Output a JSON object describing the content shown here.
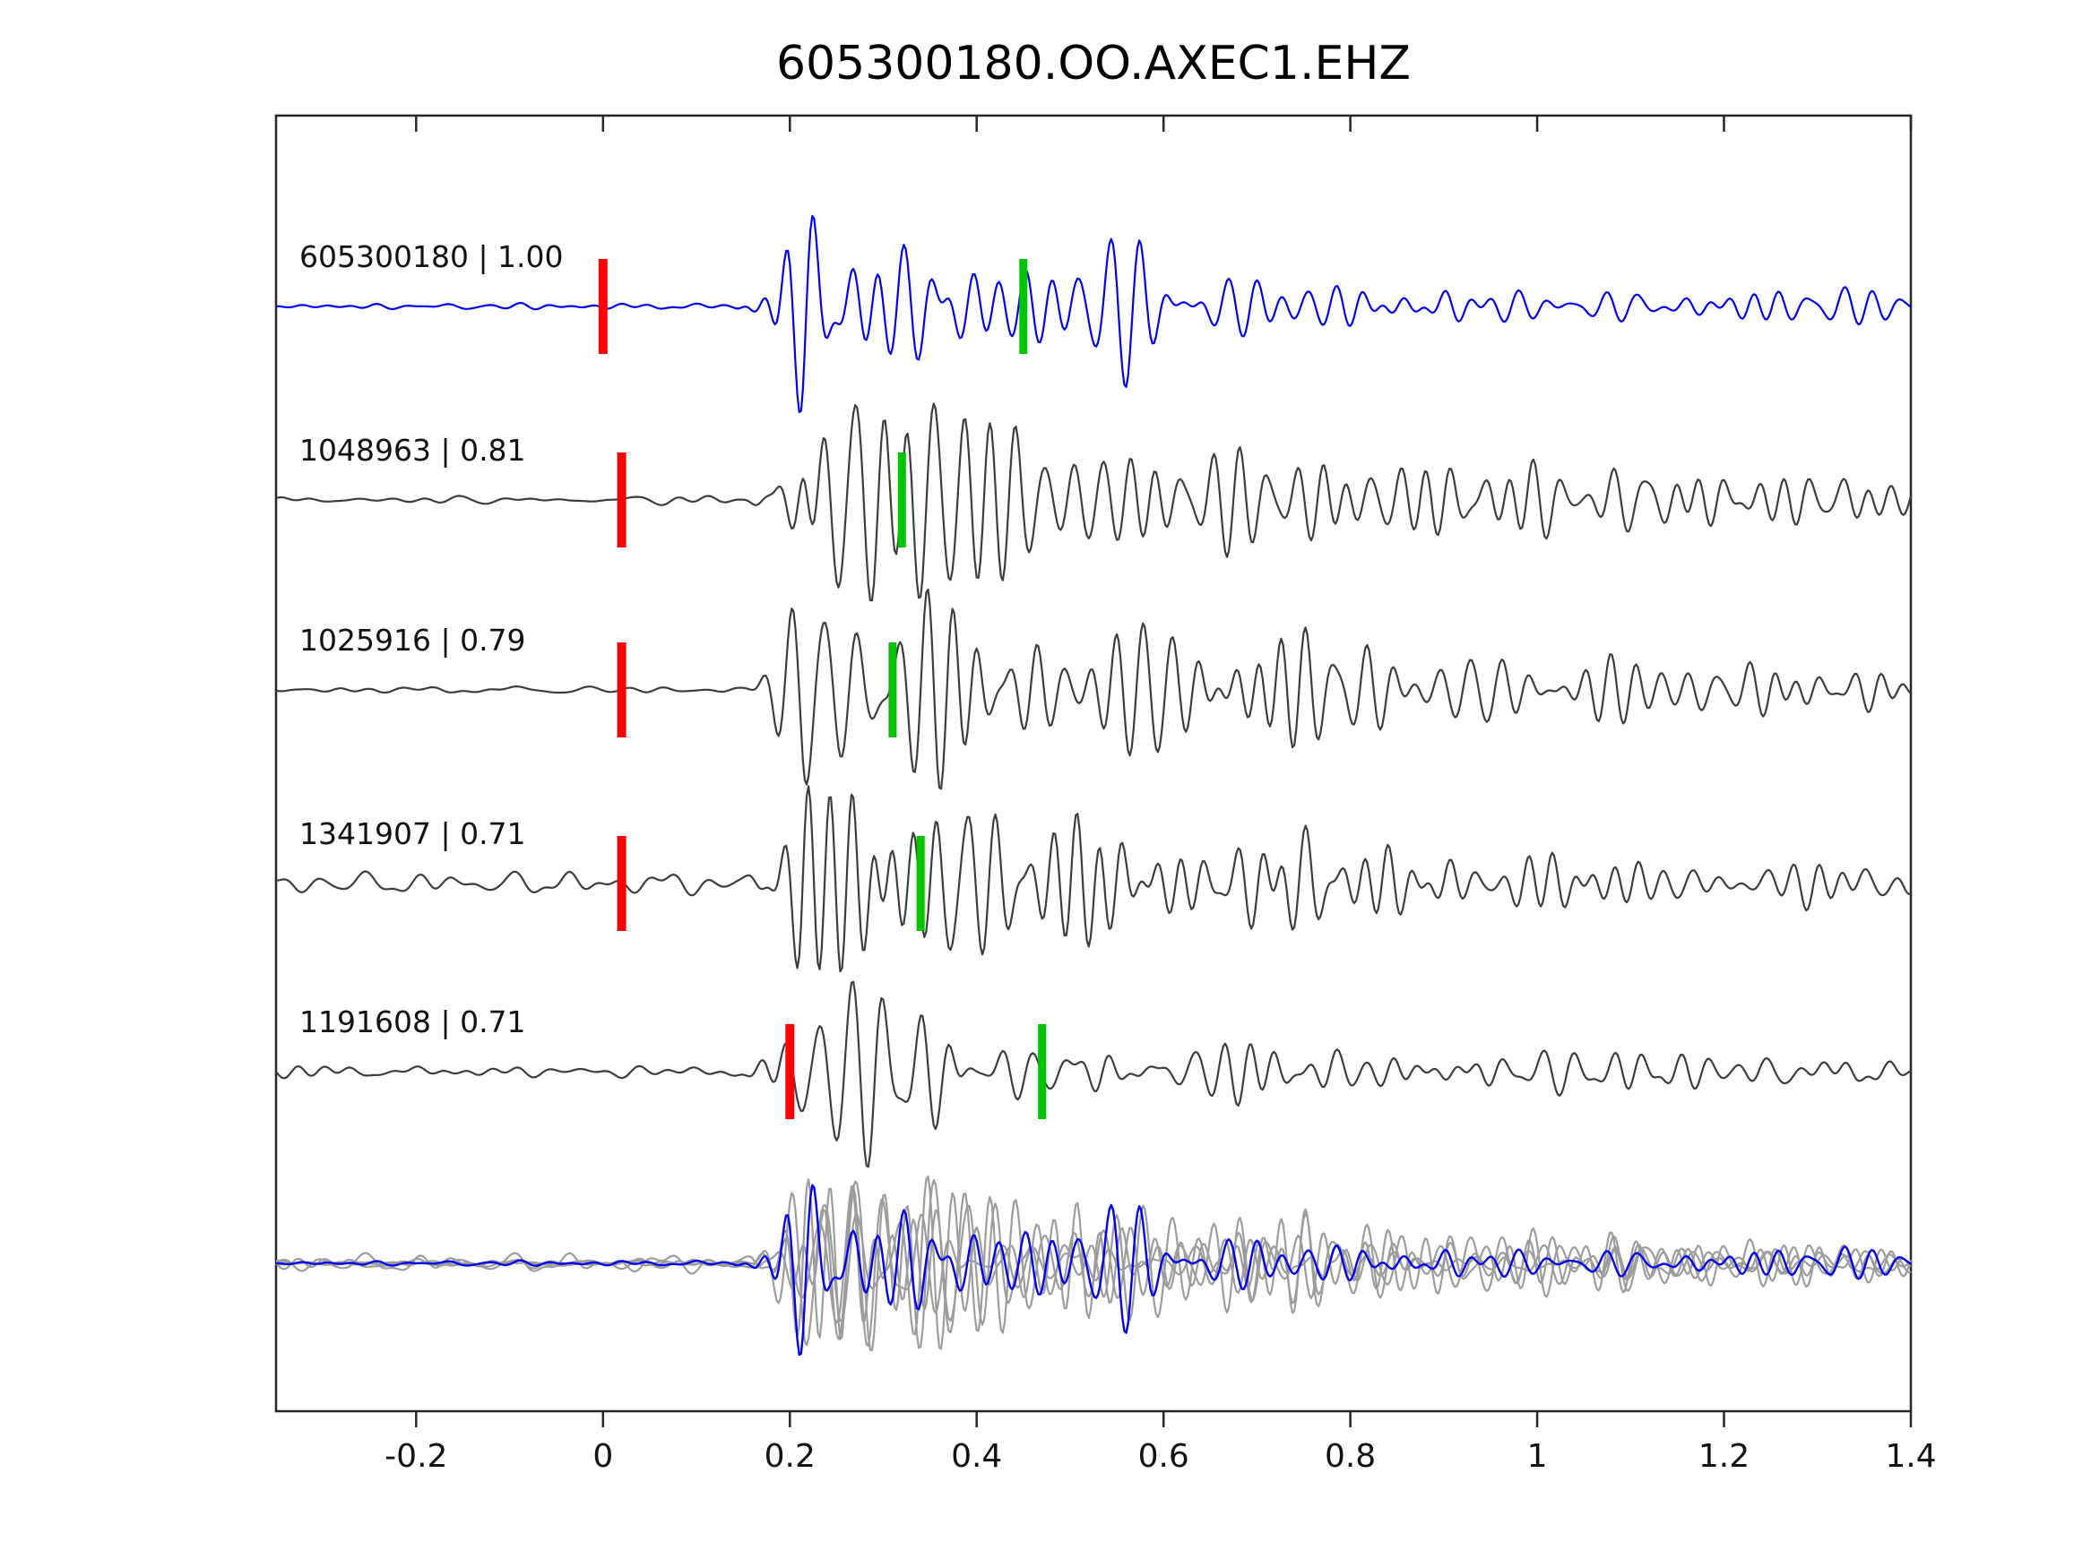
{
  "chart_data": {
    "type": "line",
    "title": "605300180.OO.AXEC1.EHZ",
    "xlabel": "",
    "ylabel": "",
    "xlim": [
      -0.35,
      1.4
    ],
    "xticks": [
      -0.2,
      0,
      0.2,
      0.4,
      0.6,
      0.8,
      1,
      1.2,
      1.4
    ],
    "xtick_labels": [
      "-0.2",
      "0",
      "0.2",
      "0.4",
      "0.6",
      "0.8",
      "1",
      "1.2",
      "1.4"
    ],
    "grid": false,
    "legend": "none",
    "colors": {
      "template_trace": "#0000ee",
      "detection_trace": "#3c3c3c",
      "overlay_trace": "#9c9c9c",
      "pick_red": "#ff0000",
      "pick_green": "#00c400",
      "axis": "#262626",
      "text": "#111111"
    },
    "traces": [
      {
        "id": "605300180",
        "correlation": "1.00",
        "label": "605300180 | 1.00",
        "role": "template",
        "red_pick_x": 0.0,
        "green_pick_x": 0.45,
        "seed": 11,
        "amp": 1.0,
        "noise": 0.06
      },
      {
        "id": "1048963",
        "correlation": "0.81",
        "label": "1048963 | 0.81",
        "role": "detection",
        "red_pick_x": 0.02,
        "green_pick_x": 0.32,
        "seed": 23,
        "amp": 0.95,
        "noise": 0.04
      },
      {
        "id": "1025916",
        "correlation": "0.79",
        "label": "1025916 | 0.79",
        "role": "detection",
        "red_pick_x": 0.02,
        "green_pick_x": 0.31,
        "seed": 37,
        "amp": 0.95,
        "noise": 0.05
      },
      {
        "id": "1341907",
        "correlation": "0.71",
        "label": "1341907 | 0.71",
        "role": "detection",
        "red_pick_x": 0.02,
        "green_pick_x": 0.34,
        "seed": 51,
        "amp": 0.92,
        "noise": 0.13
      },
      {
        "id": "1191608",
        "correlation": "0.71",
        "label": "1191608 | 0.71",
        "role": "detection",
        "red_pick_x": 0.2,
        "green_pick_x": 0.47,
        "seed": 67,
        "amp": 0.9,
        "noise": 0.15
      }
    ],
    "overlay": {
      "description": "all five waveforms superimposed at the bottom of the plot",
      "gray_trace_ids": [
        "1048963",
        "1025916",
        "1341907",
        "1191608"
      ],
      "highlight_trace_id": "605300180"
    },
    "waveform": {
      "dt": 0.002,
      "n_components": 26,
      "freq_min": 22,
      "freq_max": 46,
      "onset": 0.14,
      "peak": 0.215,
      "decay_tau": 0.42,
      "coda": 0.1
    }
  }
}
